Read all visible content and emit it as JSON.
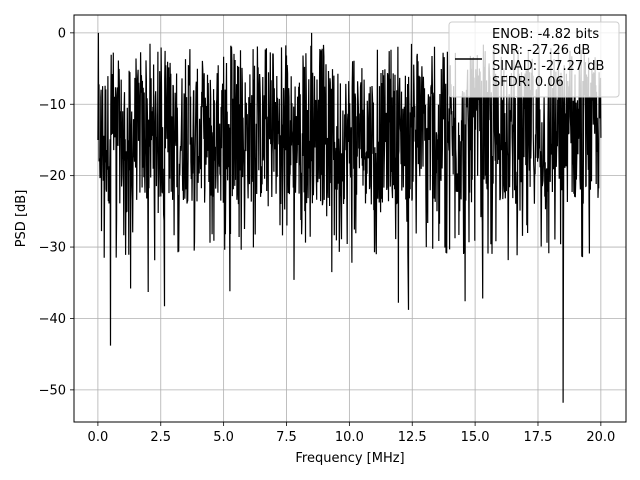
{
  "chart_data": {
    "type": "line",
    "title": "",
    "xlabel": "Frequency [MHz]",
    "ylabel": "PSD [dB]",
    "xlim": [
      -0.95,
      21.0
    ],
    "ylim": [
      -54.5,
      2.5
    ],
    "xticks": [
      0.0,
      2.5,
      5.0,
      7.5,
      10.0,
      12.5,
      15.0,
      17.5,
      20.0
    ],
    "xtick_labels": [
      "0.0",
      "2.5",
      "5.0",
      "7.5",
      "10.0",
      "12.5",
      "15.0",
      "17.5",
      "20.0"
    ],
    "yticks": [
      0,
      -10,
      -20,
      -30,
      -40,
      -50
    ],
    "ytick_labels": [
      "0",
      "−10",
      "−20",
      "−30",
      "−40",
      "−50"
    ],
    "grid": true,
    "legend": {
      "placement": "top-right",
      "entries": [
        "ENOB: -4.82 bits",
        "SNR: -27.26 dB",
        "SINAD: -27.27 dB",
        "SFDR: 0.06"
      ]
    },
    "series": [
      {
        "color": "#000000",
        "x_range": [
          0.0,
          20.0
        ],
        "typical_band_db": [
          -24.0,
          -5.0
        ],
        "notable_points": [
          {
            "x": 0.0,
            "y": -15.0
          },
          {
            "x": 0.02,
            "y": 0.0
          },
          {
            "x": 0.05,
            "y": -18.0
          },
          {
            "x": 0.25,
            "y": -31.5
          },
          {
            "x": 0.5,
            "y": -43.8
          },
          {
            "x": 0.55,
            "y": -5.8
          },
          {
            "x": 1.3,
            "y": -35.8
          },
          {
            "x": 2.0,
            "y": -36.3
          },
          {
            "x": 2.65,
            "y": -38.3
          },
          {
            "x": 5.25,
            "y": -36.2
          },
          {
            "x": 7.8,
            "y": -34.6
          },
          {
            "x": 8.5,
            "y": 0.0
          },
          {
            "x": 9.3,
            "y": -33.5
          },
          {
            "x": 10.1,
            "y": -32.2
          },
          {
            "x": 11.95,
            "y": -37.8
          },
          {
            "x": 12.35,
            "y": -38.8
          },
          {
            "x": 14.6,
            "y": -37.6
          },
          {
            "x": 15.3,
            "y": -37.2
          },
          {
            "x": 18.5,
            "y": -51.8
          }
        ]
      }
    ]
  }
}
